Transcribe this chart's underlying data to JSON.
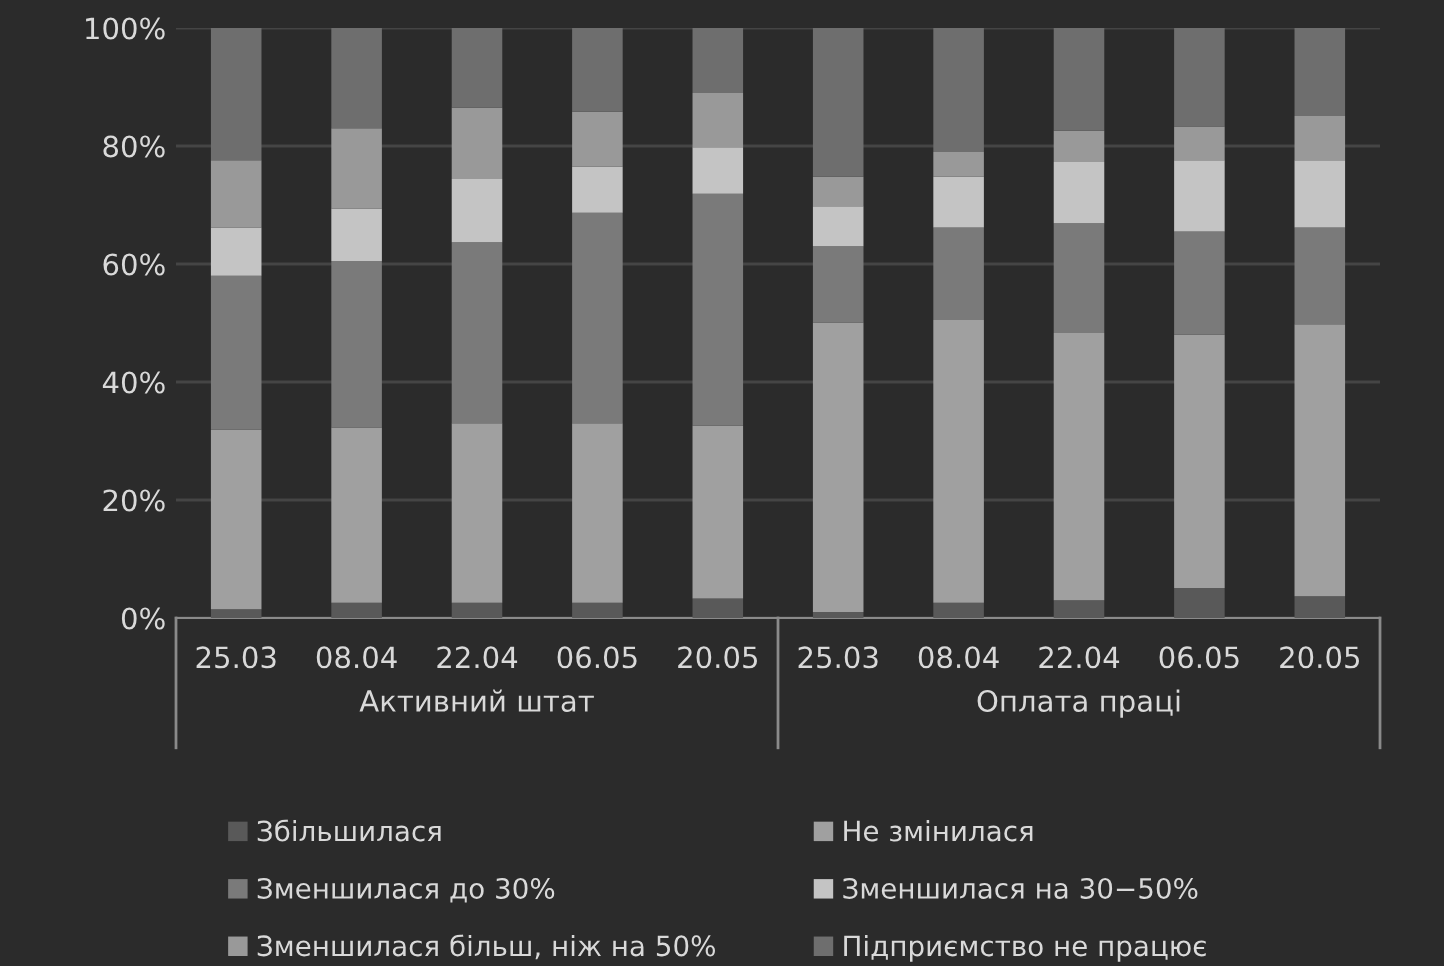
{
  "chart_data": {
    "type": "bar",
    "stacked": true,
    "categories": [
      "25.03",
      "08.04",
      "22.04",
      "06.05",
      "20.05",
      "25.03",
      "08.04",
      "22.04",
      "06.05",
      "20.05"
    ],
    "annotations": [
      "Активний штат",
      "Оплата праці"
    ],
    "series": [
      {
        "name": "Збільшилася",
        "color": "#595959",
        "values": [
          1.5,
          2.6,
          2.6,
          2.6,
          3.3,
          1.0,
          2.6,
          3.0,
          5.1,
          3.7
        ]
      },
      {
        "name": "Не змінилася",
        "color": "#a0a0a0",
        "values": [
          30.4,
          29.7,
          30.4,
          30.4,
          29.3,
          49.1,
          47.9,
          45.3,
          42.9,
          46.1
        ]
      },
      {
        "name": "Зменшилася до 30%",
        "color": "#7a7a7a",
        "values": [
          26.1,
          28.2,
          30.7,
          35.7,
          39.3,
          12.9,
          15.7,
          18.6,
          17.5,
          16.4
        ]
      },
      {
        "name": "Зменшилася на 30−50%",
        "color": "#c4c4c4",
        "values": [
          8.2,
          8.9,
          10.7,
          7.8,
          7.9,
          6.8,
          8.6,
          10.4,
          12.1,
          11.4
        ]
      },
      {
        "name": "Зменшилася більш, ніж на 50%",
        "color": "#999999",
        "values": [
          11.4,
          13.6,
          12.1,
          9.3,
          9.2,
          5.0,
          4.2,
          5.3,
          5.7,
          7.5
        ]
      },
      {
        "name": "Підприємство не працює",
        "color": "#6e6e6e",
        "values": [
          22.4,
          17.0,
          13.5,
          14.2,
          11.0,
          25.2,
          21.0,
          17.4,
          16.7,
          14.9
        ]
      }
    ],
    "ylim": [
      0,
      100
    ],
    "yticks": [
      {
        "value": 0,
        "label": "0%"
      },
      {
        "value": 20,
        "label": "20%"
      },
      {
        "value": 40,
        "label": "40%"
      },
      {
        "value": 60,
        "label": "60%"
      },
      {
        "value": 80,
        "label": "80%"
      },
      {
        "value": 100,
        "label": "100%"
      }
    ],
    "grid": "y",
    "legend": "bottom"
  }
}
